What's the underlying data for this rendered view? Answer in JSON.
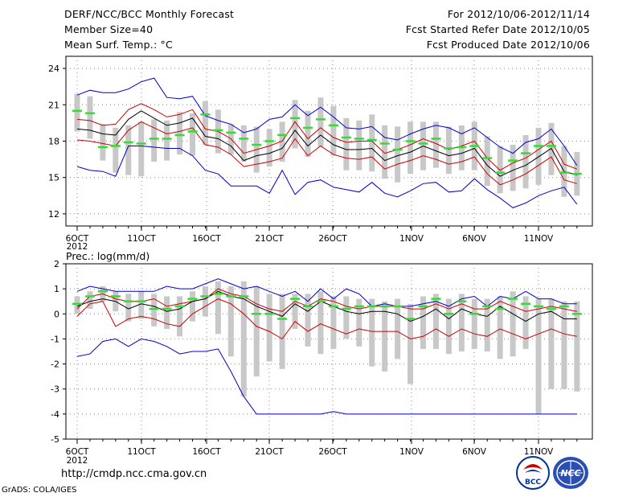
{
  "header": {
    "title": "DERF/NCC/BCC Monthly Forecast",
    "member_size": "Member Size=40",
    "variable": "Mean Surf. Temp.: °C",
    "forecast_period": "For 2012/10/06-2012/11/14",
    "started_refer": "Fcst Started Refer Date 2012/10/05",
    "produced": "Fcst Produced Date 2012/10/06"
  },
  "footer": {
    "url": "http://cmdp.ncc.cma.gov.cn",
    "grads": "GrADS: COLA/IGES",
    "logo_bcc": "BCC",
    "logo_ncc": "NCC"
  },
  "colors": {
    "envelope": "#0000cc",
    "spread": "#cc0000",
    "mean": "#000000",
    "median": "#33dd33",
    "box": "#c8c8c8",
    "grid": "#888888"
  },
  "chart_data": [
    {
      "type": "line",
      "title": "Mean Surf. Temp.: °C",
      "x_tick_labels": [
        "6OCT",
        "11OCT",
        "16OCT",
        "21OCT",
        "26OCT",
        "1NOV",
        "6NOV",
        "11NOV"
      ],
      "x_year_label": "2012",
      "x_day_range": [
        1,
        40
      ],
      "ylim": [
        11,
        25
      ],
      "y_ticks": [
        12,
        15,
        18,
        21,
        24
      ],
      "grid": true,
      "series": [
        {
          "name": "max",
          "role": "envelope",
          "values": [
            21.8,
            22.2,
            22.0,
            22.0,
            22.3,
            22.9,
            23.2,
            21.6,
            21.5,
            21.7,
            20.1,
            19.7,
            19.4,
            18.7,
            19.0,
            19.8,
            20.0,
            21.0,
            20.1,
            20.8,
            20.0,
            19.1,
            19.0,
            19.2,
            18.3,
            18.1,
            18.6,
            19.0,
            19.3,
            19.1,
            18.6,
            19.1,
            18.3,
            17.5,
            17.0,
            17.9,
            18.2,
            19.0,
            17.6,
            16.0
          ]
        },
        {
          "name": "upper",
          "role": "spread",
          "values": [
            19.8,
            19.7,
            19.3,
            19.4,
            20.6,
            21.1,
            20.6,
            20.0,
            20.2,
            20.6,
            19.0,
            18.8,
            18.2,
            17.0,
            17.3,
            17.6,
            18.0,
            19.6,
            18.2,
            19.1,
            18.3,
            17.9,
            18.0,
            18.0,
            17.0,
            17.3,
            17.7,
            18.2,
            17.8,
            17.3,
            17.6,
            18.0,
            16.6,
            15.6,
            16.2,
            16.6,
            17.3,
            18.0,
            16.1,
            15.7
          ]
        },
        {
          "name": "mean",
          "role": "mean",
          "values": [
            19.0,
            18.9,
            18.6,
            18.5,
            19.8,
            20.5,
            19.9,
            19.3,
            19.5,
            19.9,
            18.4,
            18.2,
            17.6,
            16.4,
            16.8,
            17.0,
            17.4,
            18.9,
            17.6,
            18.5,
            17.7,
            17.3,
            17.3,
            17.4,
            16.4,
            16.8,
            17.1,
            17.6,
            17.2,
            16.8,
            17.0,
            17.4,
            16.0,
            15.1,
            15.6,
            16.0,
            16.7,
            17.4,
            15.5,
            15.2
          ]
        },
        {
          "name": "lower",
          "role": "spread",
          "values": [
            18.1,
            18.0,
            17.8,
            17.6,
            18.9,
            19.6,
            19.1,
            18.6,
            18.8,
            19.1,
            17.7,
            17.5,
            16.9,
            15.9,
            16.1,
            16.3,
            16.6,
            18.2,
            16.8,
            17.6,
            16.9,
            16.6,
            16.5,
            16.7,
            15.7,
            16.1,
            16.4,
            16.8,
            16.5,
            16.1,
            16.3,
            16.7,
            15.3,
            14.4,
            14.8,
            15.3,
            16.0,
            16.7,
            14.8,
            14.5
          ]
        },
        {
          "name": "min",
          "role": "envelope",
          "values": [
            15.9,
            15.6,
            15.5,
            15.1,
            17.6,
            17.6,
            17.5,
            17.4,
            17.4,
            16.8,
            15.6,
            15.3,
            14.3,
            14.3,
            14.3,
            13.7,
            15.6,
            13.6,
            14.6,
            14.8,
            14.2,
            14.0,
            13.8,
            14.6,
            13.7,
            13.4,
            13.9,
            14.5,
            14.6,
            13.8,
            13.9,
            14.9,
            14.0,
            13.3,
            12.5,
            12.9,
            13.5,
            13.9,
            14.2,
            12.8
          ]
        },
        {
          "name": "median",
          "role": "median",
          "values": [
            20.5,
            20.3,
            17.5,
            17.6,
            17.9,
            17.8,
            18.2,
            18.2,
            18.5,
            18.8,
            20.2,
            18.9,
            18.7,
            18.2,
            17.7,
            18.0,
            18.5,
            19.9,
            19.1,
            19.8,
            19.3,
            18.3,
            18.2,
            18.1,
            17.8,
            17.3,
            18.0,
            17.8,
            18.2,
            17.4,
            17.5,
            17.6,
            16.6,
            15.4,
            16.4,
            17.0,
            17.6,
            17.6,
            15.4,
            15.3
          ]
        }
      ],
      "box_25": [
        19.0,
        18.8,
        17.0,
        16.5,
        16.8,
        16.2,
        17.1,
        17.2,
        17.5,
        17.5,
        18.8,
        17.6,
        17.7,
        17.0,
        16.4,
        16.6,
        17.2,
        18.5,
        17.6,
        18.6,
        17.8,
        16.7,
        16.5,
        16.5,
        16.3,
        15.8,
        16.7,
        16.3,
        16.6,
        16.2,
        16.2,
        16.6,
        15.4,
        14.3,
        15.1,
        15.8,
        16.2,
        16.7,
        14.6,
        14.1
      ],
      "box_75": [
        21.3,
        21.0,
        18.7,
        18.4,
        18.8,
        19.1,
        19.3,
        19.2,
        19.5,
        19.6,
        20.6,
        19.7,
        19.1,
        18.9,
        18.6,
        18.7,
        19.2,
        20.9,
        20.0,
        20.7,
        20.0,
        19.1,
        19.2,
        19.4,
        18.6,
        18.5,
        19.1,
        19.0,
        18.8,
        18.5,
        18.6,
        18.8,
        17.9,
        16.7,
        17.4,
        17.9,
        18.6,
        18.9,
        16.9,
        16.7
      ],
      "whisker_low": [
        18.8,
        18.2,
        16.4,
        15.4,
        15.2,
        15.1,
        16.3,
        16.4,
        16.9,
        16.8,
        17.7,
        17.0,
        16.9,
        16.3,
        15.4,
        15.9,
        16.3,
        17.4,
        16.7,
        17.5,
        16.8,
        15.6,
        15.6,
        15.5,
        14.9,
        14.6,
        15.3,
        15.6,
        15.8,
        15.3,
        15.6,
        15.6,
        14.3,
        13.7,
        13.9,
        14.1,
        14.4,
        15.2,
        13.4,
        13.5
      ],
      "whisker_high": [
        21.9,
        21.7,
        19.4,
        19.1,
        19.3,
        19.6,
        19.8,
        19.7,
        20.4,
        20.3,
        21.3,
        20.6,
        19.4,
        19.3,
        19.2,
        19.0,
        19.6,
        21.4,
        20.5,
        21.6,
        20.9,
        19.9,
        19.7,
        20.2,
        19.3,
        19.2,
        19.6,
        19.6,
        19.6,
        19.2,
        19.3,
        19.6,
        18.4,
        17.6,
        17.7,
        18.5,
        19.1,
        19.5,
        17.6,
        17.1
      ]
    },
    {
      "type": "line",
      "title": "Prec.: log(mm/d)",
      "x_tick_labels": [
        "6OCT",
        "11OCT",
        "16OCT",
        "21OCT",
        "26OCT",
        "1NOV",
        "6NOV",
        "11NOV"
      ],
      "x_year_label": "2012",
      "x_day_range": [
        1,
        40
      ],
      "ylim": [
        -5,
        2
      ],
      "y_ticks": [
        -5,
        -4,
        -3,
        -2,
        -1,
        0,
        1,
        2
      ],
      "grid": true,
      "series": [
        {
          "name": "max",
          "role": "envelope",
          "values": [
            0.9,
            1.1,
            1.0,
            0.9,
            0.9,
            0.9,
            0.9,
            1.1,
            1.0,
            1.0,
            1.2,
            1.4,
            1.2,
            1.0,
            1.1,
            0.9,
            0.7,
            0.9,
            0.5,
            1.0,
            0.6,
            1.0,
            0.8,
            0.3,
            0.4,
            0.3,
            0.3,
            0.4,
            0.5,
            0.3,
            0.6,
            0.7,
            0.3,
            0.7,
            0.6,
            0.9,
            0.6,
            0.6,
            0.4,
            0.4
          ]
        },
        {
          "name": "upper",
          "role": "spread",
          "values": [
            0.2,
            0.7,
            0.8,
            0.6,
            0.5,
            0.5,
            0.6,
            0.3,
            0.4,
            0.5,
            0.6,
            1.0,
            0.8,
            0.7,
            0.4,
            0.2,
            0.1,
            0.5,
            0.3,
            0.6,
            0.5,
            0.3,
            0.2,
            0.3,
            0.3,
            0.3,
            0.2,
            0.2,
            0.4,
            0.2,
            0.4,
            0.2,
            0.2,
            0.5,
            0.3,
            0.1,
            0.2,
            0.3,
            0.2,
            0.1
          ]
        },
        {
          "name": "mean",
          "role": "mean",
          "values": [
            0.3,
            0.5,
            0.6,
            0.5,
            0.2,
            0.4,
            0.3,
            0.1,
            0.2,
            0.5,
            0.6,
            0.9,
            0.7,
            0.6,
            0.3,
            0.1,
            -0.1,
            0.4,
            0.1,
            0.5,
            0.3,
            0.1,
            0.0,
            0.1,
            0.1,
            0.0,
            -0.3,
            -0.1,
            0.2,
            -0.2,
            0.2,
            0.0,
            -0.1,
            0.3,
            0.0,
            -0.3,
            0.0,
            0.1,
            -0.2,
            -0.2
          ]
        },
        {
          "name": "lower",
          "role": "spread",
          "values": [
            -0.1,
            0.4,
            0.5,
            -0.5,
            -0.2,
            -0.1,
            -0.2,
            -0.4,
            -0.5,
            0.0,
            0.3,
            0.6,
            0.4,
            0.0,
            -0.5,
            -0.7,
            -1.0,
            -0.3,
            -0.7,
            -0.4,
            -0.6,
            -0.8,
            -0.6,
            -0.7,
            -0.7,
            -0.7,
            -1.0,
            -0.9,
            -0.6,
            -0.9,
            -0.6,
            -0.8,
            -0.9,
            -0.6,
            -0.8,
            -1.0,
            -0.8,
            -0.6,
            -0.8,
            -0.9
          ]
        },
        {
          "name": "min",
          "role": "envelope",
          "values": [
            -1.7,
            -1.6,
            -1.1,
            -1.0,
            -1.3,
            -1.0,
            -1.1,
            -1.3,
            -1.6,
            -1.5,
            -1.5,
            -1.4,
            -2.3,
            -3.3,
            -4.0,
            -4.0,
            -4.0,
            -4.0,
            -4.0,
            -4.0,
            -3.9,
            -4.0,
            -4.0,
            -4.0,
            -4.0,
            -4.0,
            -4.0,
            -4.0,
            -4.0,
            -4.0,
            -4.0,
            -4.0,
            -4.0,
            -4.0,
            -4.0,
            -4.0,
            -4.0,
            -4.0,
            -4.0,
            -4.0
          ]
        },
        {
          "name": "median",
          "role": "median",
          "values": [
            0.4,
            0.7,
            0.9,
            0.7,
            0.5,
            0.5,
            0.2,
            0.2,
            0.3,
            0.6,
            0.7,
            0.8,
            0.7,
            0.7,
            0.0,
            0.0,
            -0.2,
            0.6,
            0.3,
            0.5,
            0.3,
            0.2,
            0.3,
            0.3,
            0.3,
            0.3,
            -0.2,
            0.3,
            0.6,
            0.0,
            0.5,
            0.0,
            0.3,
            0.2,
            0.6,
            0.4,
            0.3,
            0.2,
            0.3,
            0.0
          ]
        }
      ],
      "box_25": [
        0.2,
        0.4,
        0.7,
        0.4,
        0.1,
        -0.1,
        -0.2,
        -0.3,
        -0.4,
        0.1,
        0.5,
        0.1,
        -0.3,
        -0.4,
        -0.3,
        -0.3,
        -0.6,
        0.2,
        -0.4,
        -0.1,
        -0.5,
        -0.5,
        -0.3,
        -0.6,
        -0.4,
        -0.8,
        -0.7,
        -0.4,
        -0.2,
        -0.3,
        -0.3,
        -0.4,
        -0.6,
        -0.4,
        -0.4,
        -0.6,
        -0.4,
        -0.3,
        -0.7,
        -0.8
      ],
      "box_75": [
        0.6,
        0.8,
        1.0,
        0.8,
        0.6,
        0.7,
        0.6,
        0.5,
        0.5,
        0.7,
        0.9,
        1.1,
        1.0,
        1.0,
        0.4,
        0.3,
        0.5,
        0.7,
        0.6,
        0.8,
        0.5,
        0.5,
        0.4,
        0.5,
        0.4,
        0.4,
        0.1,
        0.6,
        0.7,
        0.3,
        0.7,
        0.5,
        0.5,
        0.6,
        0.7,
        0.6,
        0.5,
        0.5,
        0.4,
        0.3
      ],
      "whisker_low": [
        0.0,
        0.2,
        0.5,
        0.1,
        -0.3,
        -0.2,
        -0.5,
        -0.6,
        -0.9,
        -0.3,
        -0.1,
        -0.8,
        -1.7,
        -3.3,
        -2.5,
        -1.9,
        -2.2,
        -0.6,
        -1.3,
        -1.6,
        -1.4,
        -1.0,
        -1.3,
        -2.1,
        -2.3,
        -1.8,
        -2.8,
        -1.4,
        -1.4,
        -1.6,
        -1.5,
        -1.4,
        -1.5,
        -1.8,
        -1.7,
        -1.4,
        -4.0,
        -3.0,
        -3.0,
        -3.1
      ],
      "whisker_high": [
        0.7,
        0.9,
        1.1,
        0.9,
        0.8,
        0.9,
        0.8,
        0.7,
        0.7,
        0.9,
        1.1,
        1.3,
        1.1,
        1.3,
        1.1,
        0.8,
        0.8,
        0.8,
        0.8,
        0.9,
        0.7,
        0.7,
        0.6,
        0.6,
        0.5,
        0.6,
        0.4,
        0.7,
        0.8,
        0.6,
        0.8,
        0.6,
        0.6,
        0.7,
        0.9,
        0.7,
        0.6,
        0.6,
        0.5,
        0.5
      ]
    }
  ]
}
